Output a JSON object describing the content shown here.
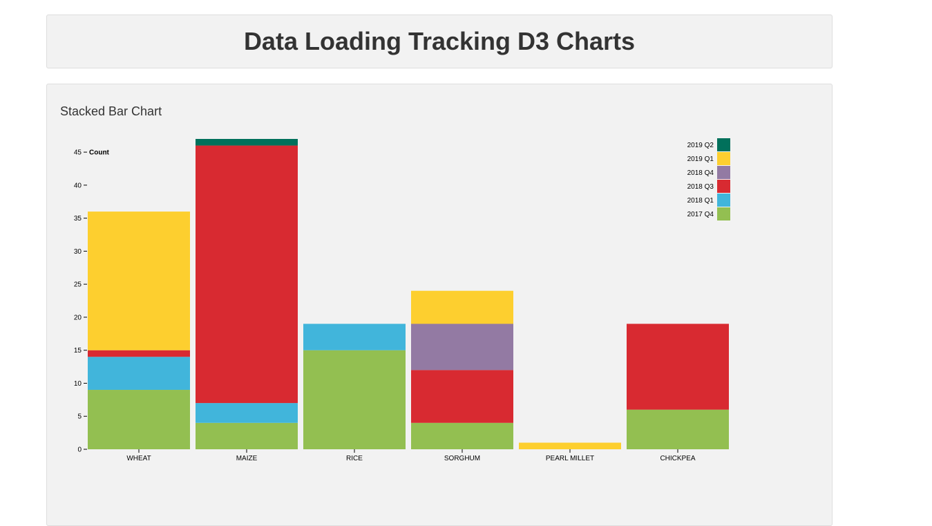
{
  "header": {
    "title": "Data Loading Tracking D3 Charts"
  },
  "panel": {
    "title": "Stacked Bar Chart"
  },
  "chart_data": {
    "type": "bar",
    "stacked": true,
    "categories": [
      "WHEAT",
      "MAIZE",
      "RICE",
      "SORGHUM",
      "PEARL MILLET",
      "CHICKPEA"
    ],
    "ylabel": "Count",
    "ylim": [
      0,
      47
    ],
    "yticks": [
      0,
      5,
      10,
      15,
      20,
      25,
      30,
      35,
      40,
      45
    ],
    "legend_position": "top-right",
    "series": [
      {
        "name": "2017 Q4",
        "color": "#93bf51",
        "values": [
          9,
          4,
          15,
          4,
          0,
          6
        ]
      },
      {
        "name": "2018 Q1",
        "color": "#41b5db",
        "values": [
          5,
          3,
          4,
          0,
          0,
          0
        ]
      },
      {
        "name": "2018 Q3",
        "color": "#d82a31",
        "values": [
          1,
          39,
          0,
          8,
          0,
          13
        ]
      },
      {
        "name": "2018 Q4",
        "color": "#937aa3",
        "values": [
          0,
          0,
          0,
          7,
          0,
          0
        ]
      },
      {
        "name": "2019 Q1",
        "color": "#fdcf2f",
        "values": [
          21,
          0,
          0,
          5,
          1,
          0
        ]
      },
      {
        "name": "2019 Q2",
        "color": "#01705b",
        "values": [
          0,
          1,
          0,
          0,
          0,
          0
        ]
      }
    ]
  }
}
